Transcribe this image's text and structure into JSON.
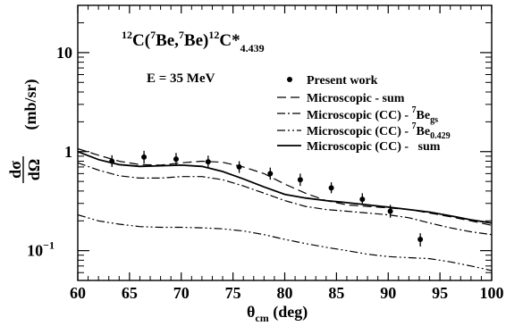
{
  "chart_data": {
    "type": "scatter",
    "title_parts": {
      "pre_sup": "12",
      "a": "C(",
      "sup1": "7",
      "b": "Be,",
      "sup2": "7",
      "c": "Be)",
      "sup3": "12",
      "d": "C*",
      "sub": "4.439"
    },
    "energy_label": "E = 35 MeV",
    "xlabel": {
      "main": "θ",
      "sub": "cm",
      "rest": " (deg)"
    },
    "ylabel": {
      "numerator": "dσ",
      "denominator": "dΩ",
      "unit": "(mb/sr)"
    },
    "xlim": [
      60,
      100
    ],
    "ylim": [
      0.05,
      30
    ],
    "yscale": "log",
    "x_ticks": [
      60,
      65,
      70,
      75,
      80,
      85,
      90,
      95,
      100
    ],
    "y_ticks": [
      {
        "value": 0.1,
        "label_main": "10",
        "label_sup": "−1"
      },
      {
        "value": 1,
        "label_main": "1",
        "label_sup": ""
      },
      {
        "value": 10,
        "label_main": "10",
        "label_sup": ""
      }
    ],
    "legend_placement": "right",
    "grid": false,
    "data_points": {
      "name": "Present work",
      "x": [
        63.3,
        66.4,
        69.5,
        72.6,
        75.6,
        78.6,
        81.5,
        84.5,
        87.5,
        90.2,
        93.1
      ],
      "y": [
        0.8,
        0.88,
        0.84,
        0.79,
        0.7,
        0.6,
        0.52,
        0.43,
        0.33,
        0.25,
        0.13
      ],
      "err_up": [
        0.12,
        0.14,
        0.13,
        0.12,
        0.1,
        0.09,
        0.08,
        0.06,
        0.05,
        0.04,
        0.02
      ],
      "err_down": [
        0.1,
        0.12,
        0.11,
        0.1,
        0.09,
        0.08,
        0.07,
        0.05,
        0.04,
        0.035,
        0.02
      ]
    },
    "curves": [
      {
        "name": "Microscopic - sum",
        "style": "dashed",
        "x": [
          60,
          62,
          64,
          66,
          68,
          70,
          72,
          74,
          76,
          78,
          80,
          82,
          84,
          86,
          88,
          90,
          92,
          94,
          96,
          98,
          100
        ],
        "y": [
          1.07,
          0.92,
          0.8,
          0.74,
          0.73,
          0.77,
          0.8,
          0.78,
          0.7,
          0.6,
          0.47,
          0.38,
          0.32,
          0.29,
          0.28,
          0.27,
          0.26,
          0.24,
          0.22,
          0.2,
          0.18
        ]
      },
      {
        "name": "Microscopic (CC) - ",
        "name_sup": "7",
        "name_be": "Be",
        "name_sub": "gs",
        "style": "dashdot",
        "x": [
          60,
          62,
          64,
          66,
          68,
          70,
          72,
          74,
          76,
          78,
          80,
          82,
          84,
          86,
          88,
          90,
          92,
          94,
          96,
          98,
          100
        ],
        "y": [
          0.77,
          0.65,
          0.57,
          0.54,
          0.54,
          0.56,
          0.56,
          0.52,
          0.45,
          0.38,
          0.32,
          0.28,
          0.26,
          0.25,
          0.24,
          0.23,
          0.215,
          0.19,
          0.17,
          0.155,
          0.145
        ]
      },
      {
        "name": "Microscopic (CC) - ",
        "name_sup": "7",
        "name_be": "Be",
        "name_sub": "0.429",
        "style": "dashdotdot",
        "x": [
          60,
          62,
          64,
          66,
          68,
          70,
          72,
          74,
          76,
          78,
          80,
          82,
          84,
          86,
          88,
          90,
          92,
          94,
          96,
          98,
          100
        ],
        "y": [
          0.23,
          0.2,
          0.185,
          0.175,
          0.172,
          0.172,
          0.17,
          0.166,
          0.158,
          0.145,
          0.13,
          0.118,
          0.108,
          0.1,
          0.092,
          0.087,
          0.085,
          0.083,
          0.077,
          0.07,
          0.063
        ]
      },
      {
        "name": "Microscopic (CC) -   sum",
        "style": "solid",
        "x": [
          60,
          62,
          64,
          66,
          68,
          70,
          72,
          74,
          76,
          78,
          80,
          82,
          84,
          86,
          88,
          90,
          92,
          94,
          96,
          98,
          100
        ],
        "y": [
          1.0,
          0.83,
          0.74,
          0.71,
          0.72,
          0.73,
          0.71,
          0.63,
          0.53,
          0.44,
          0.37,
          0.34,
          0.32,
          0.305,
          0.29,
          0.275,
          0.26,
          0.245,
          0.225,
          0.205,
          0.19
        ]
      }
    ]
  }
}
